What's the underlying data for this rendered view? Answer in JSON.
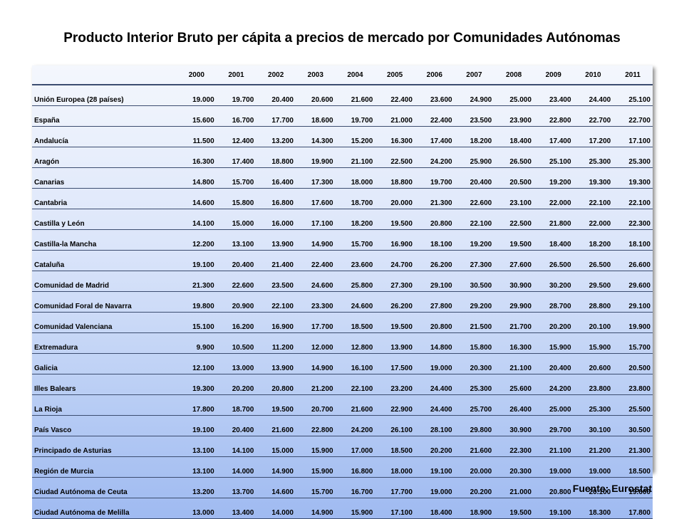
{
  "title": "Producto Interior Bruto per cápita a precios de mercado por Comunidades Autónomas",
  "source": "Fuente: Eurostat",
  "table": {
    "corner": "",
    "years": [
      "2000",
      "2001",
      "2002",
      "2003",
      "2004",
      "2005",
      "2006",
      "2007",
      "2008",
      "2009",
      "2010",
      "2011"
    ],
    "rows": [
      {
        "region": "Unión Europea (28 países)",
        "values": [
          "19.000",
          "19.700",
          "20.400",
          "20.600",
          "21.600",
          "22.400",
          "23.600",
          "24.900",
          "25.000",
          "23.400",
          "24.400",
          "25.100"
        ]
      },
      {
        "region": "España",
        "values": [
          "15.600",
          "16.700",
          "17.700",
          "18.600",
          "19.700",
          "21.000",
          "22.400",
          "23.500",
          "23.900",
          "22.800",
          "22.700",
          "22.700"
        ]
      },
      {
        "region": "Andalucía",
        "values": [
          "11.500",
          "12.400",
          "13.200",
          "14.300",
          "15.200",
          "16.300",
          "17.400",
          "18.200",
          "18.400",
          "17.400",
          "17.200",
          "17.100"
        ]
      },
      {
        "region": "Aragón",
        "values": [
          "16.300",
          "17.400",
          "18.800",
          "19.900",
          "21.100",
          "22.500",
          "24.200",
          "25.900",
          "26.500",
          "25.100",
          "25.300",
          "25.300"
        ]
      },
      {
        "region": "Canarias",
        "values": [
          "14.800",
          "15.700",
          "16.400",
          "17.300",
          "18.000",
          "18.800",
          "19.700",
          "20.400",
          "20.500",
          "19.200",
          "19.300",
          "19.300"
        ]
      },
      {
        "region": "Cantabria",
        "values": [
          "14.600",
          "15.800",
          "16.800",
          "17.600",
          "18.700",
          "20.000",
          "21.300",
          "22.600",
          "23.100",
          "22.000",
          "22.100",
          "22.100"
        ]
      },
      {
        "region": "Castilla y León",
        "values": [
          "14.100",
          "15.000",
          "16.000",
          "17.100",
          "18.200",
          "19.500",
          "20.800",
          "22.100",
          "22.500",
          "21.800",
          "22.000",
          "22.300"
        ]
      },
      {
        "region": "Castilla-la Mancha",
        "values": [
          "12.200",
          "13.100",
          "13.900",
          "14.900",
          "15.700",
          "16.900",
          "18.100",
          "19.200",
          "19.500",
          "18.400",
          "18.200",
          "18.100"
        ]
      },
      {
        "region": "Cataluña",
        "values": [
          "19.100",
          "20.400",
          "21.400",
          "22.400",
          "23.600",
          "24.700",
          "26.200",
          "27.300",
          "27.600",
          "26.500",
          "26.500",
          "26.600"
        ]
      },
      {
        "region": "Comunidad  de Madrid",
        "values": [
          "21.300",
          "22.600",
          "23.500",
          "24.600",
          "25.800",
          "27.300",
          "29.100",
          "30.500",
          "30.900",
          "30.200",
          "29.500",
          "29.600"
        ]
      },
      {
        "region": "Comunidad  Foral de Navarra",
        "values": [
          "19.800",
          "20.900",
          "22.100",
          "23.300",
          "24.600",
          "26.200",
          "27.800",
          "29.200",
          "29.900",
          "28.700",
          "28.800",
          "29.100"
        ]
      },
      {
        "region": "Comunidad  Valenciana",
        "values": [
          "15.100",
          "16.200",
          "16.900",
          "17.700",
          "18.500",
          "19.500",
          "20.800",
          "21.500",
          "21.700",
          "20.200",
          "20.100",
          "19.900"
        ]
      },
      {
        "region": "Extremadura",
        "values": [
          "9.900",
          "10.500",
          "11.200",
          "12.000",
          "12.800",
          "13.900",
          "14.800",
          "15.800",
          "16.300",
          "15.900",
          "15.900",
          "15.700"
        ]
      },
      {
        "region": "Galicia",
        "values": [
          "12.100",
          "13.000",
          "13.900",
          "14.900",
          "16.100",
          "17.500",
          "19.000",
          "20.300",
          "21.100",
          "20.400",
          "20.600",
          "20.500"
        ]
      },
      {
        "region": "Illes Balears",
        "values": [
          "19.300",
          "20.200",
          "20.800",
          "21.200",
          "22.100",
          "23.200",
          "24.400",
          "25.300",
          "25.600",
          "24.200",
          "23.800",
          "23.800"
        ]
      },
      {
        "region": "La Rioja",
        "values": [
          "17.800",
          "18.700",
          "19.500",
          "20.700",
          "21.600",
          "22.900",
          "24.400",
          "25.700",
          "26.400",
          "25.000",
          "25.300",
          "25.500"
        ]
      },
      {
        "region": "País Vasco",
        "values": [
          "19.100",
          "20.400",
          "21.600",
          "22.800",
          "24.200",
          "26.100",
          "28.100",
          "29.800",
          "30.900",
          "29.700",
          "30.100",
          "30.500"
        ]
      },
      {
        "region": "Principado de Asturias",
        "values": [
          "13.100",
          "14.100",
          "15.000",
          "15.900",
          "17.000",
          "18.500",
          "20.200",
          "21.600",
          "22.300",
          "21.100",
          "21.200",
          "21.300"
        ]
      },
      {
        "region": "Región de Murcia",
        "values": [
          "13.100",
          "14.000",
          "14.900",
          "15.900",
          "16.800",
          "18.000",
          "19.100",
          "20.000",
          "20.300",
          "19.000",
          "19.000",
          "18.500"
        ]
      },
      {
        "region": "Ciudad Autónoma  de Ceuta",
        "values": [
          "13.200",
          "13.700",
          "14.600",
          "15.700",
          "16.700",
          "17.700",
          "19.000",
          "20.200",
          "21.000",
          "20.800",
          "20.100",
          "19.600"
        ]
      },
      {
        "region": "Ciudad Autónoma  de Melilla",
        "values": [
          "13.000",
          "13.400",
          "14.000",
          "14.900",
          "15.900",
          "17.100",
          "18.400",
          "18.900",
          "19.500",
          "19.100",
          "18.300",
          "17.800"
        ]
      }
    ]
  }
}
